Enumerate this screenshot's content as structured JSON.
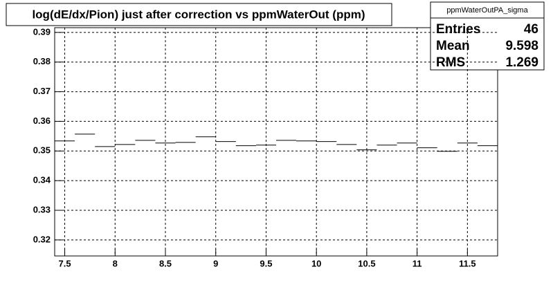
{
  "chart_data": {
    "type": "histogram",
    "title": "log(dE/dx/Pion) just after correction vs ppmWaterOut (ppm)",
    "bins": [
      7.4,
      7.6,
      7.8,
      8.0,
      8.2,
      8.4,
      8.6,
      8.8,
      9.0,
      9.2,
      9.4,
      9.6,
      9.8,
      10.0,
      10.2,
      10.4,
      10.6,
      10.8,
      11.0,
      11.2,
      11.4,
      11.6,
      11.8
    ],
    "values": [
      0.3534,
      0.3557,
      0.3515,
      0.3522,
      0.3536,
      0.3527,
      0.3529,
      0.3548,
      0.3532,
      0.3518,
      0.352,
      0.3536,
      0.3534,
      0.3532,
      0.3522,
      0.3504,
      0.352,
      0.3527,
      0.3511,
      0.3499,
      0.3527,
      0.3518
    ],
    "color": "#000000",
    "xlim": [
      7.4,
      11.8
    ],
    "xticks": [
      7.5,
      8,
      8.5,
      9,
      9.5,
      10,
      10.5,
      11,
      11.5
    ],
    "ylim": [
      0.3146,
      0.3916
    ],
    "yticks": [
      0.32,
      0.33,
      0.34,
      0.35,
      0.36,
      0.37,
      0.38,
      0.39
    ],
    "grid": true,
    "stats_box": {
      "title": "ppmWaterOutPA_sigma",
      "rows": [
        {
          "label": "Entries",
          "value": 46
        },
        {
          "label": "Mean",
          "value": 9.598
        },
        {
          "label": "RMS",
          "value": 1.269
        }
      ]
    }
  }
}
